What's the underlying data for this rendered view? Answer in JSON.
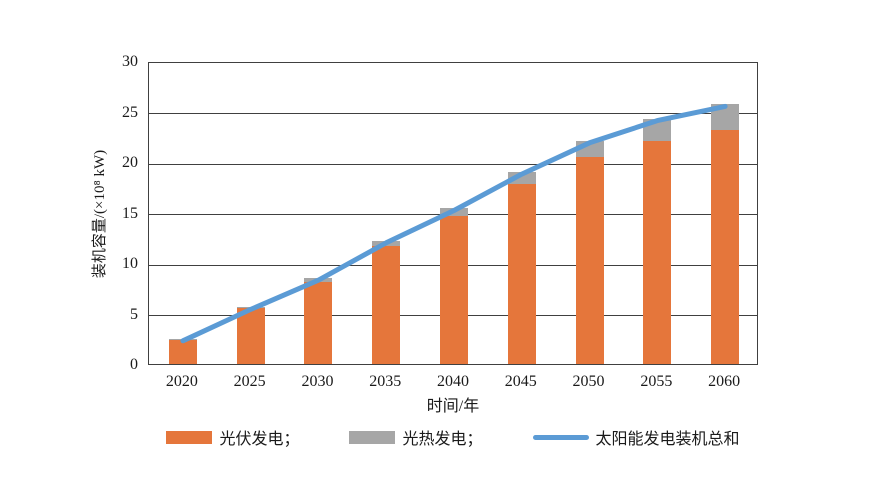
{
  "chart_data": {
    "type": "bar",
    "subtype": "stacked_bars_with_total_line",
    "title": "",
    "categories": [
      "2020",
      "2025",
      "2030",
      "2035",
      "2040",
      "2045",
      "2050",
      "2055",
      "2060"
    ],
    "series": [
      {
        "name": "光伏发电",
        "kind": "bar",
        "color": "#E5763B",
        "values": [
          2.4,
          5.5,
          8.1,
          11.7,
          14.7,
          17.8,
          20.5,
          22.1,
          23.2
        ]
      },
      {
        "name": "光热发电",
        "kind": "bar",
        "color": "#A6A6A6",
        "values": [
          0.1,
          0.1,
          0.4,
          0.5,
          0.7,
          1.2,
          1.6,
          2.2,
          2.5
        ]
      },
      {
        "name": "太阳能发电装机总和",
        "kind": "line",
        "color": "#5B9BD5",
        "values": [
          2.5,
          5.6,
          8.5,
          12.2,
          15.4,
          19.0,
          22.1,
          24.3,
          25.7
        ]
      }
    ],
    "xlabel": "时间/年",
    "ylabel": "装机容量/(×10⁸ kW)",
    "ylim": [
      0,
      30
    ],
    "yticks": [
      0,
      5,
      10,
      15,
      20,
      25,
      30
    ],
    "ytick_step": 5,
    "grid": true,
    "legend_position": "bottom"
  },
  "legend": {
    "items": [
      {
        "label": "光伏发电；",
        "swatch": "bar",
        "color": "#E5763B"
      },
      {
        "label": "光热发电；",
        "swatch": "bar",
        "color": "#A6A6A6"
      },
      {
        "label": "太阳能发电装机总和",
        "swatch": "line",
        "color": "#5B9BD5"
      }
    ]
  },
  "colors": {
    "axis": "#404040",
    "text": "#1a1a1a",
    "background": "#ffffff"
  }
}
